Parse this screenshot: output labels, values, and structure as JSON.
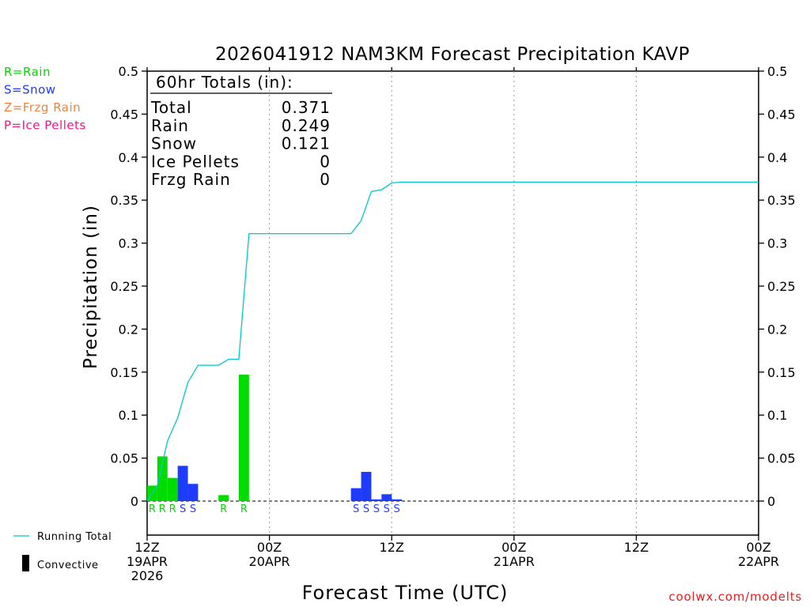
{
  "chart_data": {
    "type": "bar",
    "title": "2026041912 NAM3KM Forecast Precipitation KAVP",
    "xlabel": "Forecast Time (UTC)",
    "ylabel": "Precipitation (in)",
    "ylim": [
      -0.04,
      0.5
    ],
    "yticks": [
      "0.5",
      "0.45",
      "0.4",
      "0.35",
      "0.3",
      "0.25",
      "0.2",
      "0.15",
      "0.1",
      "0.05",
      "0"
    ],
    "ytick_values": [
      0.5,
      0.45,
      0.4,
      0.35,
      0.3,
      0.25,
      0.2,
      0.15,
      0.1,
      0.05,
      0
    ],
    "xlim_hours": [
      0,
      60
    ],
    "xticks": [
      {
        "hour": 0,
        "l1": "12Z",
        "l2": "19APR",
        "l3": "2026"
      },
      {
        "hour": 12,
        "l1": "00Z",
        "l2": "20APR",
        "l3": ""
      },
      {
        "hour": 24,
        "l1": "12Z",
        "l2": "",
        "l3": ""
      },
      {
        "hour": 36,
        "l1": "00Z",
        "l2": "21APR",
        "l3": ""
      },
      {
        "hour": 48,
        "l1": "12Z",
        "l2": "",
        "l3": ""
      },
      {
        "hour": 60,
        "l1": "00Z",
        "l2": "22APR",
        "l3": ""
      }
    ],
    "bars": [
      {
        "hour": 1,
        "value": 0.018,
        "type": "R"
      },
      {
        "hour": 2,
        "value": 0.052,
        "type": "R"
      },
      {
        "hour": 3,
        "value": 0.027,
        "type": "R"
      },
      {
        "hour": 4,
        "value": 0.041,
        "type": "S"
      },
      {
        "hour": 5,
        "value": 0.02,
        "type": "S"
      },
      {
        "hour": 8,
        "value": 0.007,
        "type": "R"
      },
      {
        "hour": 10,
        "value": 0.147,
        "type": "R"
      },
      {
        "hour": 21,
        "value": 0.015,
        "type": "S"
      },
      {
        "hour": 22,
        "value": 0.034,
        "type": "S"
      },
      {
        "hour": 23,
        "value": 0.002,
        "type": "S"
      },
      {
        "hour": 24,
        "value": 0.008,
        "type": "S"
      },
      {
        "hour": 25,
        "value": 0.002,
        "type": "S"
      }
    ],
    "running_total": {
      "hours": [
        0,
        1,
        2,
        3,
        4,
        5,
        6,
        7,
        8,
        9,
        10,
        11,
        12,
        13,
        14,
        15,
        16,
        17,
        18,
        19,
        20,
        21,
        22,
        23,
        24,
        25,
        60
      ],
      "values": [
        0.0,
        0.018,
        0.07,
        0.097,
        0.138,
        0.158,
        0.158,
        0.158,
        0.165,
        0.165,
        0.311,
        0.311,
        0.311,
        0.311,
        0.311,
        0.311,
        0.311,
        0.311,
        0.311,
        0.311,
        0.311,
        0.326,
        0.36,
        0.362,
        0.37,
        0.371,
        0.371
      ]
    },
    "colors": {
      "R": "#00dc00",
      "S": "#1e3cff",
      "Z": "#f0823c",
      "P": "#f0148c",
      "line": "#00c8c8"
    }
  },
  "legend": {
    "types": [
      {
        "code": "R",
        "label": "R=Rain",
        "color": "#00dc00"
      },
      {
        "code": "S",
        "label": "S=Snow",
        "color": "#1e3cff"
      },
      {
        "code": "Z",
        "label": "Z=Frzg Rain",
        "color": "#f0823c"
      },
      {
        "code": "P",
        "label": "P=Ice Pellets",
        "color": "#f0148c"
      }
    ],
    "running_total_label": "Running Total",
    "convective_label": "Convective"
  },
  "totals": {
    "header": "60hr Totals (in):",
    "rows": [
      {
        "label": "Total",
        "value": "0.371"
      },
      {
        "label": "Rain",
        "value": "0.249"
      },
      {
        "label": "Snow",
        "value": "0.121"
      },
      {
        "label": "Ice Pellets",
        "value": "0"
      },
      {
        "label": "Frzg Rain",
        "value": "0"
      }
    ]
  },
  "credit": "coolwx.com/modelts"
}
